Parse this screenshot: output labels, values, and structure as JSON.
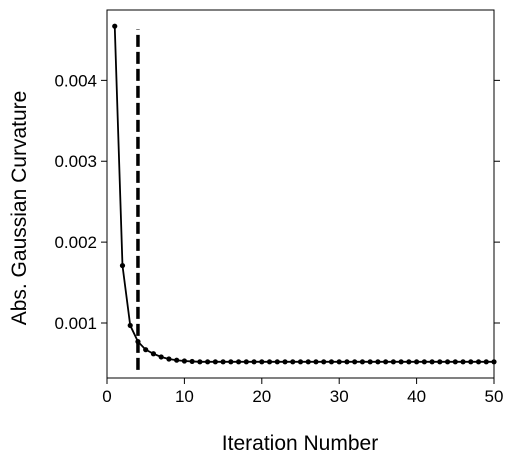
{
  "chart_data": {
    "type": "line",
    "title": "",
    "xlabel": "Iteration Number",
    "ylabel": "Abs. Gaussian Curvature",
    "xlim": [
      0,
      50
    ],
    "ylim": [
      0.00032,
      0.00487
    ],
    "xticks": [
      0,
      10,
      20,
      30,
      40,
      50
    ],
    "xtick_labels": [
      "0",
      "10",
      "20",
      "30",
      "40",
      "50"
    ],
    "yticks": [
      0.001,
      0.002,
      0.003,
      0.004
    ],
    "ytick_labels": [
      "0.001",
      "0.002",
      "0.003",
      "0.004"
    ],
    "grid": false,
    "line_color": "#000000",
    "series": [
      {
        "x": [
          1,
          2,
          3,
          4,
          5,
          6,
          7,
          8,
          9,
          10,
          11,
          12,
          13,
          14,
          15,
          16,
          17,
          18,
          19,
          20,
          21,
          22,
          23,
          24,
          25,
          26,
          27,
          28,
          29,
          30,
          31,
          32,
          33,
          34,
          35,
          36,
          37,
          38,
          39,
          40,
          41,
          42,
          43,
          44,
          45,
          46,
          47,
          48,
          49,
          50
        ],
        "values": [
          0.00467,
          0.00171,
          0.00097,
          0.00077,
          0.00067,
          0.00062,
          0.00058,
          0.000555,
          0.00054,
          0.00053,
          0.000525,
          0.00052,
          0.00052,
          0.00052,
          0.00052,
          0.00052,
          0.00052,
          0.00052,
          0.00052,
          0.00052,
          0.00052,
          0.00052,
          0.00052,
          0.00052,
          0.00052,
          0.00052,
          0.00052,
          0.00052,
          0.00052,
          0.00052,
          0.00052,
          0.00052,
          0.00052,
          0.00052,
          0.00052,
          0.00052,
          0.00052,
          0.00052,
          0.00052,
          0.00052,
          0.00052,
          0.00052,
          0.00052,
          0.00052,
          0.00052,
          0.00052,
          0.00052,
          0.00052,
          0.00052,
          0.00052
        ]
      }
    ],
    "annotations": [
      {
        "type": "vline",
        "x": 4,
        "y_from": 0.00042,
        "y_to": 0.00463,
        "style": "dashed"
      }
    ]
  }
}
